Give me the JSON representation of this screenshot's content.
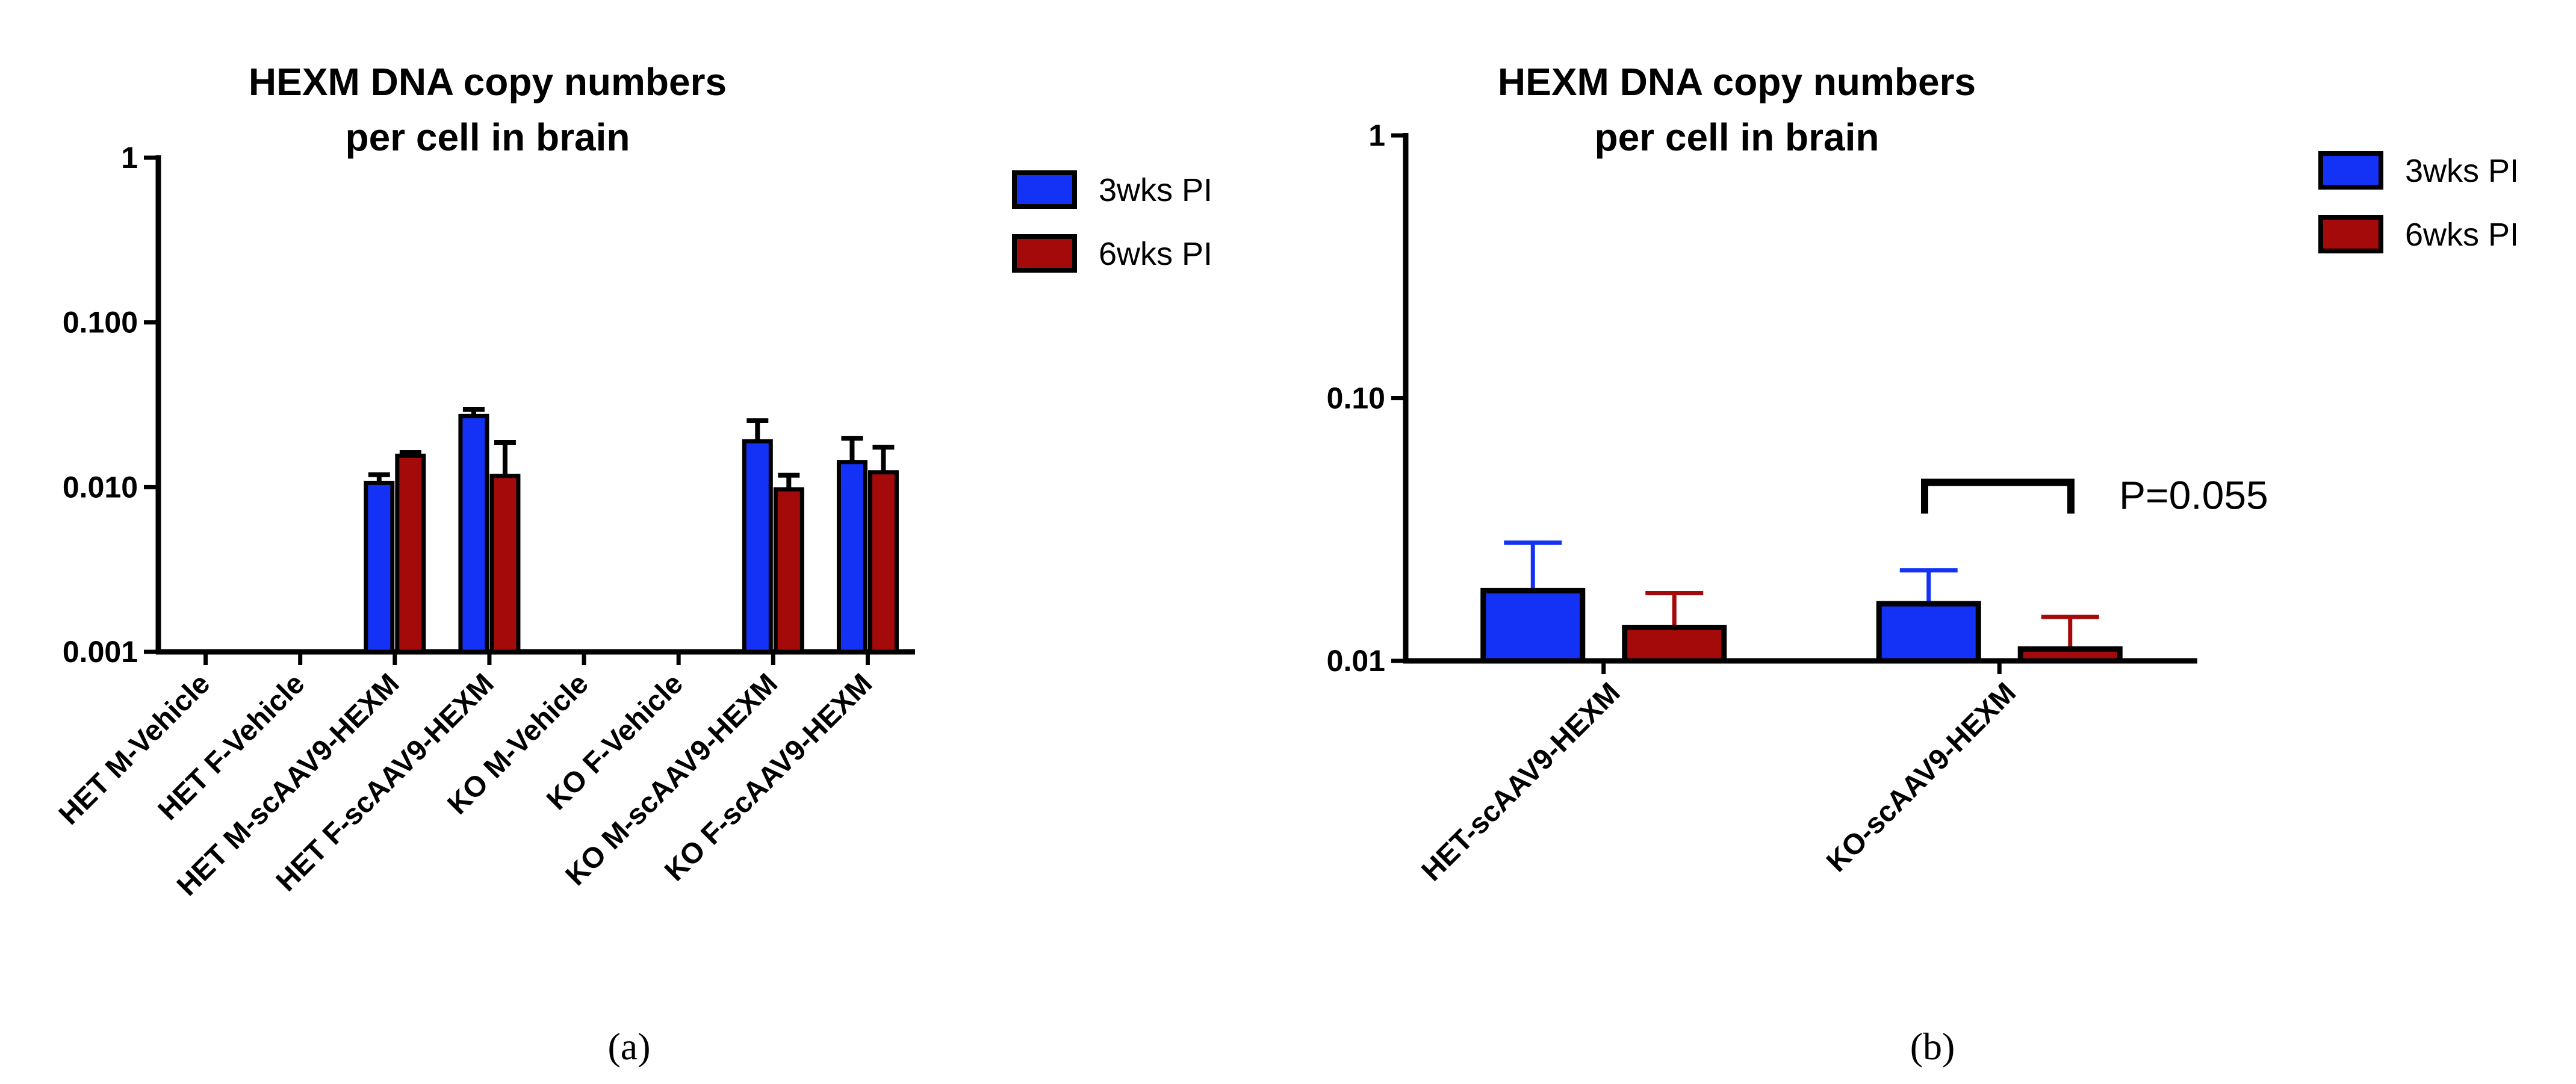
{
  "chart_data": [
    {
      "type": "bar",
      "panel_label": "(a)",
      "title": [
        "HEXM DNA copy numbers",
        "per cell in brain"
      ],
      "yscale": "log",
      "ylim": [
        0.001,
        1
      ],
      "yticks": [
        0.001,
        0.01,
        0.1,
        1
      ],
      "ytick_labels": [
        "0.001",
        "0.010",
        "0.100",
        "1"
      ],
      "categories": [
        "HET M-Vehicle",
        "HET F-Vehicle",
        "HET M-scAAV9-HEXM",
        "HET F-scAAV9-HEXM",
        "KO M-Vehicle",
        "KO F-Vehicle",
        "KO M-scAAV9-HEXM",
        "KO F-scAAV9-HEXM"
      ],
      "series": [
        {
          "name": "3wks PI",
          "color": "#1432f5",
          "values": [
            null,
            null,
            0.0106,
            0.027,
            null,
            null,
            0.019,
            0.0142
          ],
          "errors": [
            null,
            null,
            0.0119,
            0.0297,
            null,
            null,
            0.0253,
            0.0198
          ]
        },
        {
          "name": "6wks PI",
          "color": "#a50a0a",
          "values": [
            null,
            null,
            0.0155,
            0.0117,
            null,
            null,
            0.0097,
            0.0123
          ],
          "errors": [
            null,
            null,
            0.0162,
            0.0187,
            null,
            null,
            0.0118,
            0.0175
          ]
        }
      ],
      "legend": [
        "3wks PI",
        "6wks PI"
      ],
      "legend_position": "top-right"
    },
    {
      "type": "bar",
      "panel_label": "(b)",
      "title": [
        "HEXM DNA copy numbers",
        "per cell in brain"
      ],
      "yscale": "log",
      "ylim": [
        0.01,
        1
      ],
      "yticks": [
        0.01,
        0.1,
        1
      ],
      "ytick_labels": [
        "0.01",
        "0.10",
        "1"
      ],
      "categories": [
        "HET-scAAV9-HEXM",
        "KO-scAAV9-HEXM"
      ],
      "series": [
        {
          "name": "3wks PI",
          "color": "#1432f5",
          "values": [
            0.0185,
            0.0165
          ],
          "errors": [
            0.0282,
            0.0221
          ]
        },
        {
          "name": "6wks PI",
          "color": "#a50a0a",
          "values": [
            0.0134,
            0.0111
          ],
          "errors": [
            0.0181,
            0.0147
          ]
        }
      ],
      "legend": [
        "3wks PI",
        "6wks PI"
      ],
      "legend_position": "top-right",
      "annotation": "P=0.055"
    }
  ]
}
